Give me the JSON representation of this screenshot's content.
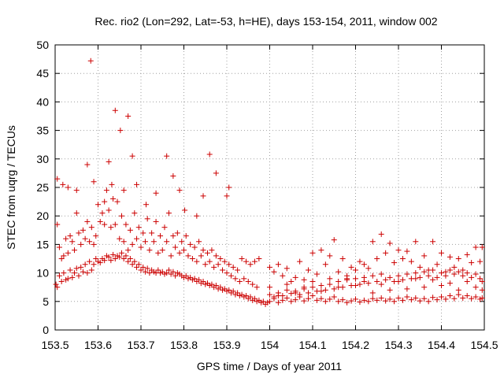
{
  "chart_data": {
    "type": "scatter",
    "title": "Rec. rio2 (Lon=292, Lat=-53, h=HE), days 153-154, 2011, window 002",
    "xlabel": "GPS time / Days of year 2011",
    "ylabel": "STEC from uqrg / TECUs",
    "xlim": [
      153.5,
      154.5
    ],
    "ylim": [
      0,
      50
    ],
    "xticks": [
      153.5,
      153.6,
      153.7,
      153.8,
      153.9,
      154,
      154.1,
      154.2,
      154.3,
      154.4,
      154.5
    ],
    "xtick_labels": [
      "153.5",
      "153.6",
      "153.7",
      "153.8",
      "153.9",
      "154",
      "154.1",
      "154.2",
      "154.3",
      "154.4",
      "154.5"
    ],
    "yticks": [
      0,
      5,
      10,
      15,
      20,
      25,
      30,
      35,
      40,
      45,
      50
    ],
    "ytick_labels": [
      "0",
      "5",
      "10",
      "15",
      "20",
      "25",
      "30",
      "35",
      "40",
      "45",
      "50"
    ],
    "grid": true,
    "marker": "+",
    "color": "#cc0000",
    "series": [
      {
        "x": [
          153.502,
          153.505,
          153.51,
          153.515,
          153.52,
          153.525,
          153.53,
          153.535,
          153.54,
          153.545,
          153.55,
          153.555,
          153.56,
          153.565,
          153.57,
          153.575,
          153.58,
          153.585,
          153.59,
          153.595,
          153.6,
          153.605,
          153.61,
          153.615,
          153.62,
          153.625,
          153.63,
          153.635,
          153.64,
          153.645,
          153.65,
          153.655,
          153.66,
          153.665,
          153.67,
          153.675,
          153.68,
          153.685,
          153.69,
          153.695,
          153.7,
          153.705,
          153.71,
          153.715,
          153.72,
          153.725,
          153.73,
          153.735,
          153.74,
          153.745,
          153.75,
          153.755,
          153.76,
          153.765,
          153.77,
          153.775,
          153.78,
          153.785,
          153.79,
          153.795,
          153.8,
          153.805,
          153.81,
          153.815,
          153.82,
          153.825,
          153.83,
          153.835,
          153.84,
          153.845,
          153.85,
          153.855,
          153.86,
          153.865,
          153.87,
          153.875,
          153.88,
          153.885,
          153.89,
          153.895,
          153.9,
          153.905,
          153.91,
          153.915,
          153.92,
          153.925,
          153.93,
          153.935,
          153.94,
          153.945,
          153.95,
          153.955,
          153.96,
          153.965,
          153.97,
          153.975,
          153.98,
          153.985,
          153.99,
          153.995
        ],
        "y": [
          8.0,
          7.5,
          9.5,
          8.5,
          10.0,
          8.8,
          9.0,
          10.5,
          9.2,
          10.0,
          10.8,
          9.5,
          11.0,
          10.2,
          11.5,
          10.0,
          12.0,
          10.5,
          11.5,
          12.5,
          12.0,
          11.8,
          12.5,
          12.2,
          13.0,
          12.8,
          12.2,
          13.2,
          12.5,
          13.0,
          12.8,
          13.5,
          12.5,
          13.0,
          12.0,
          12.5,
          11.5,
          12.0,
          11.0,
          11.5,
          10.5,
          11.0,
          10.2,
          10.8,
          10.0,
          10.5,
          10.2,
          10.0,
          10.5,
          10.0,
          10.2,
          9.8,
          10.0,
          10.5,
          9.8,
          10.2,
          9.5,
          10.0,
          9.8,
          9.5,
          9.2,
          9.5,
          9.0,
          9.2,
          8.8,
          9.0,
          8.5,
          8.8,
          8.2,
          8.5,
          8.0,
          8.2,
          7.8,
          8.0,
          7.5,
          7.8,
          7.2,
          7.5,
          7.0,
          7.2,
          6.8,
          7.0,
          6.5,
          6.8,
          6.2,
          6.5,
          6.0,
          6.2,
          5.8,
          6.0,
          5.5,
          5.8,
          5.2,
          5.5,
          5.0,
          5.2,
          4.8,
          5.0,
          4.5,
          4.8
        ]
      },
      {
        "x": [
          153.505,
          153.51,
          153.515,
          153.52,
          153.525,
          153.53,
          153.535,
          153.54,
          153.545,
          153.55,
          153.555,
          153.56,
          153.565,
          153.57,
          153.575,
          153.58,
          153.585,
          153.59,
          153.595,
          153.6,
          153.605,
          153.61,
          153.615,
          153.62,
          153.625,
          153.63,
          153.635,
          153.64,
          153.645,
          153.65,
          153.655,
          153.66,
          153.665,
          153.67,
          153.675,
          153.68,
          153.685,
          153.69,
          153.695,
          153.7,
          153.705,
          153.71,
          153.715,
          153.72,
          153.725,
          153.73,
          153.735,
          153.74,
          153.745,
          153.75,
          153.755,
          153.76,
          153.765,
          153.77,
          153.775,
          153.78,
          153.785,
          153.79,
          153.795,
          153.8,
          153.805,
          153.81,
          153.815,
          153.82,
          153.825,
          153.83,
          153.835,
          153.84,
          153.845,
          153.85,
          153.855,
          153.86,
          153.865,
          153.87,
          153.875,
          153.88,
          153.885,
          153.89,
          153.895,
          153.9,
          153.905,
          153.91,
          153.915,
          153.92,
          153.925,
          153.93,
          153.935,
          153.94,
          153.945,
          153.95,
          153.955,
          153.96,
          153.965,
          153.97,
          153.975
        ],
        "y": [
          18.5,
          14.5,
          12.5,
          13.0,
          16.0,
          13.5,
          16.5,
          15.5,
          14.0,
          20.5,
          17.0,
          15.0,
          17.5,
          16.0,
          19.0,
          15.5,
          18.0,
          15.0,
          16.5,
          22.0,
          19.0,
          20.5,
          18.5,
          24.5,
          21.0,
          18.0,
          23.0,
          18.5,
          22.5,
          16.0,
          20.0,
          15.5,
          18.5,
          14.0,
          17.5,
          15.0,
          20.5,
          16.0,
          18.0,
          14.5,
          17.0,
          15.5,
          19.5,
          14.0,
          17.0,
          15.5,
          19.0,
          13.5,
          16.5,
          14.0,
          18.0,
          15.5,
          20.5,
          13.0,
          16.5,
          14.5,
          17.0,
          13.5,
          15.5,
          14.0,
          16.5,
          13.0,
          15.0,
          12.5,
          14.5,
          12.0,
          15.5,
          13.0,
          14.0,
          11.5,
          13.5,
          12.0,
          14.0,
          11.0,
          13.0,
          11.5,
          12.5,
          10.5,
          12.0,
          10.0,
          11.5,
          9.5,
          11.0,
          9.0,
          10.5,
          8.5,
          12.5,
          9.0,
          12.0,
          8.5,
          11.5,
          8.0,
          12.0,
          7.5,
          12.5
        ]
      },
      {
        "x": [
          153.505,
          153.518,
          153.53,
          153.55,
          153.575,
          153.583,
          153.59,
          153.615,
          153.625,
          153.632,
          153.64,
          153.652,
          153.66,
          153.67,
          153.68,
          153.69,
          153.712,
          153.735,
          153.76,
          153.775,
          153.79,
          153.802,
          153.83,
          153.845,
          153.86,
          153.875,
          153.9,
          153.905
        ],
        "y": [
          26.5,
          25.5,
          25.0,
          24.5,
          29.0,
          47.2,
          26.0,
          22.5,
          29.5,
          25.5,
          38.5,
          35.0,
          24.5,
          37.5,
          30.5,
          25.5,
          22.0,
          24.0,
          30.5,
          27.0,
          24.5,
          21.0,
          20.0,
          23.5,
          30.8,
          27.5,
          23.5,
          25.0
        ]
      },
      {
        "x": [
          154.0,
          154.01,
          154.02,
          154.03,
          154.04,
          154.05,
          154.06,
          154.07,
          154.08,
          154.09,
          154.1,
          154.11,
          154.12,
          154.13,
          154.14,
          154.15,
          154.16,
          154.17,
          154.18,
          154.19,
          154.2,
          154.21,
          154.22,
          154.23,
          154.24,
          154.25,
          154.26,
          154.27,
          154.28,
          154.29,
          154.3,
          154.31,
          154.32,
          154.33,
          154.34,
          154.35,
          154.36,
          154.37,
          154.38,
          154.39,
          154.4,
          154.41,
          154.42,
          154.43,
          154.44,
          154.45,
          154.46,
          154.47,
          154.48,
          154.49,
          154.495
        ],
        "y": [
          5.0,
          5.5,
          4.8,
          5.2,
          5.6,
          5.0,
          5.3,
          5.8,
          5.1,
          5.5,
          6.0,
          5.2,
          5.5,
          5.0,
          5.4,
          5.8,
          5.0,
          5.3,
          4.8,
          5.1,
          5.4,
          4.9,
          5.2,
          5.0,
          5.5,
          5.2,
          5.6,
          5.1,
          5.4,
          5.0,
          5.6,
          5.2,
          5.8,
          5.3,
          5.6,
          5.1,
          5.5,
          5.0,
          5.7,
          5.3,
          5.8,
          5.4,
          6.0,
          5.5,
          6.2,
          5.6,
          6.0,
          5.5,
          5.8,
          5.4,
          5.6
        ]
      },
      {
        "x": [
          154.0,
          154.01,
          154.02,
          154.03,
          154.04,
          154.05,
          154.06,
          154.07,
          154.08,
          154.09,
          154.1,
          154.11,
          154.12,
          154.13,
          154.14,
          154.15,
          154.16,
          154.17,
          154.18,
          154.19,
          154.2,
          154.21,
          154.22,
          154.23,
          154.24,
          154.25,
          154.26,
          154.27,
          154.28,
          154.29,
          154.3,
          154.31,
          154.32,
          154.33,
          154.34,
          154.35,
          154.36,
          154.37,
          154.38,
          154.39,
          154.4,
          154.41,
          154.42,
          154.43,
          154.44,
          154.45,
          154.46,
          154.47,
          154.48,
          154.49,
          154.495
        ],
        "y": [
          6.2,
          5.8,
          6.5,
          6.0,
          7.0,
          6.4,
          6.8,
          6.2,
          7.2,
          6.5,
          7.5,
          6.8,
          7.8,
          7.0,
          8.0,
          7.2,
          8.5,
          7.5,
          8.8,
          7.8,
          9.0,
          8.0,
          9.2,
          8.2,
          9.5,
          8.5,
          9.8,
          8.8,
          9.2,
          8.5,
          9.5,
          8.8,
          9.8,
          9.0,
          10.0,
          9.2,
          10.2,
          9.5,
          10.5,
          9.2,
          10.0,
          9.5,
          10.5,
          9.8,
          10.2,
          9.5,
          10.0,
          9.2,
          9.8,
          9.0,
          8.5
        ]
      },
      {
        "x": [
          154.0,
          154.01,
          154.02,
          154.03,
          154.04,
          154.05,
          154.06,
          154.07,
          154.08,
          154.09,
          154.1,
          154.11,
          154.12,
          154.13,
          154.14,
          154.15,
          154.16,
          154.17,
          154.18,
          154.19,
          154.2,
          154.21,
          154.22,
          154.23,
          154.24,
          154.25,
          154.26,
          154.27,
          154.28,
          154.29,
          154.3,
          154.31,
          154.32,
          154.33,
          154.34,
          154.35,
          154.36,
          154.37,
          154.38,
          154.39,
          154.4,
          154.41,
          154.42,
          154.43,
          154.44,
          154.45,
          154.46,
          154.47,
          154.48,
          154.49,
          154.495
        ],
        "y": [
          11.0,
          10.2,
          11.5,
          9.5,
          10.8,
          8.5,
          9.2,
          12.0,
          8.8,
          10.5,
          13.5,
          9.8,
          14.0,
          11.5,
          13.0,
          15.8,
          10.2,
          12.5,
          9.0,
          11.0,
          10.5,
          12.0,
          11.5,
          10.8,
          15.5,
          12.5,
          16.8,
          13.5,
          15.2,
          11.8,
          14.0,
          12.5,
          13.8,
          12.0,
          15.5,
          11.0,
          13.0,
          10.5,
          15.5,
          11.5,
          13.5,
          10.2,
          12.8,
          11.0,
          12.5,
          10.5,
          13.2,
          11.8,
          14.5,
          12.0,
          14.5
        ]
      },
      {
        "x": [
          154.0,
          154.02,
          154.04,
          154.06,
          154.08,
          154.1,
          154.12,
          154.14,
          154.16,
          154.18,
          154.2,
          154.22,
          154.24,
          154.26,
          154.28,
          154.3,
          154.32,
          154.34,
          154.36,
          154.38,
          154.4,
          154.42,
          154.44,
          154.46,
          154.48,
          154.495
        ],
        "y": [
          7.5,
          6.0,
          8.0,
          6.5,
          7.5,
          8.5,
          6.8,
          9.0,
          7.5,
          9.5,
          7.8,
          8.5,
          6.5,
          8.0,
          7.0,
          8.5,
          7.2,
          9.0,
          7.5,
          8.8,
          7.8,
          8.2,
          7.0,
          8.5,
          7.5,
          7.0
        ]
      }
    ]
  }
}
